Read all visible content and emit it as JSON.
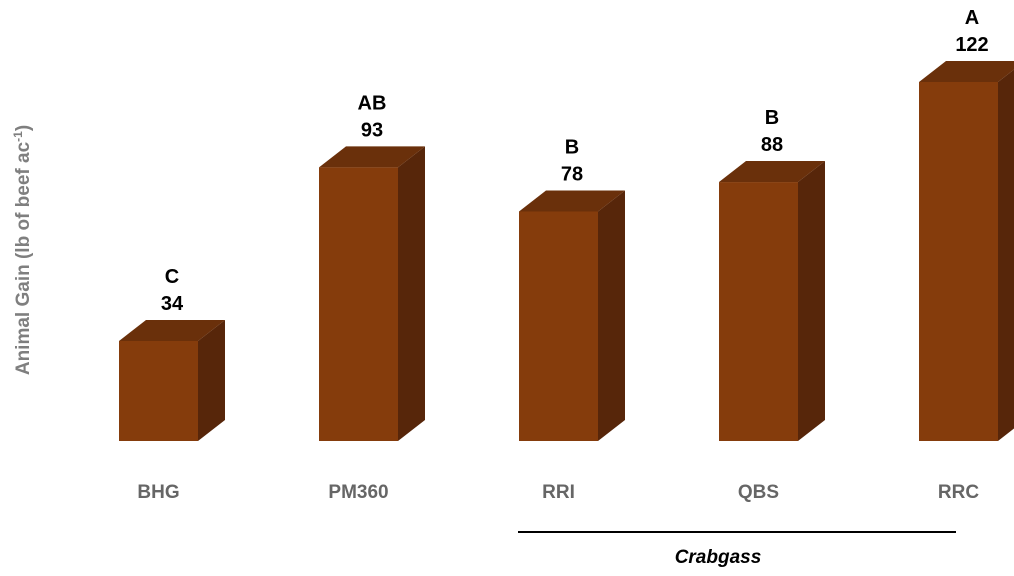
{
  "chart_data": {
    "type": "bar",
    "style": "3d-column",
    "categories": [
      "BHG",
      "PM360",
      "RRI",
      "QBS",
      "RRC"
    ],
    "values": [
      34,
      93,
      78,
      88,
      122
    ],
    "significance_letters": [
      "C",
      "AB",
      "B",
      "B",
      "A"
    ],
    "ylabel": {
      "main": "Animal Gain (lb of beef ac",
      "superscript": "-1",
      "close": ")"
    },
    "xlabel": "",
    "ylim": [
      0,
      122
    ],
    "grid": false,
    "legend": "none",
    "group_bracket": {
      "label": "Crabgass",
      "from_category": "RRI",
      "to_category": "RRC"
    },
    "colors": {
      "bar_front": "#853C0C",
      "bar_side": "#57260A",
      "bar_top": "#6A300B",
      "category_label": "#666666",
      "axis_label": "#7F7F7F",
      "value_label": "#000000"
    }
  }
}
